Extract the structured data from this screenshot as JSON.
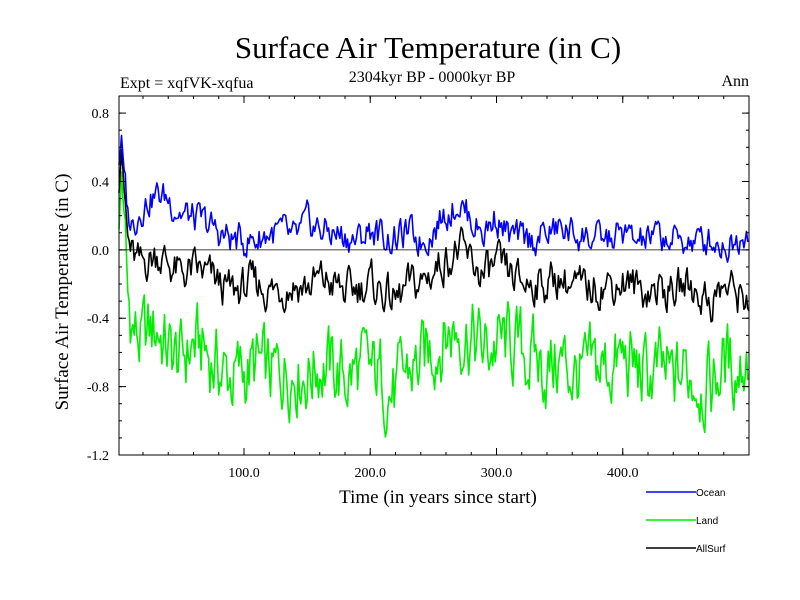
{
  "chart_data": {
    "type": "line",
    "title": "Surface Air Temperature (in C)",
    "subtitle": "2304kyr BP - 0000kyr BP",
    "left_label": "Expt = xqfVK-xqfua",
    "right_label": "Ann",
    "xlabel": "Time (in years since start)",
    "ylabel": "Surface Air Temperature (in C)",
    "xlim": [
      1,
      500
    ],
    "ylim": [
      -1.2,
      0.9
    ],
    "x_ticks": [
      100,
      200,
      300,
      400
    ],
    "x_tick_labels": [
      "100.0",
      "200.0",
      "300.0",
      "400.0"
    ],
    "y_ticks": [
      0.8,
      0.4,
      0.0,
      -0.4,
      -0.8,
      -1.2
    ],
    "y_tick_labels": [
      "0.8",
      "0.4",
      "0.0",
      "-0.4",
      "-0.8",
      "-1.2"
    ],
    "zero_line": 0.0,
    "series": [
      {
        "name": "Ocean",
        "color": "#0000ff",
        "x": [
          1,
          3,
          5,
          8,
          12,
          18,
          25,
          32,
          40,
          50,
          60,
          70,
          80,
          90,
          100,
          110,
          120,
          130,
          140,
          150,
          160,
          170,
          180,
          190,
          200,
          210,
          220,
          230,
          240,
          250,
          260,
          270,
          280,
          290,
          300,
          310,
          320,
          330,
          340,
          350,
          360,
          370,
          380,
          390,
          400,
          410,
          420,
          430,
          440,
          450,
          460,
          470,
          480,
          490,
          500
        ],
        "values": [
          0.5,
          0.66,
          0.45,
          0.2,
          0.15,
          0.25,
          0.3,
          0.32,
          0.3,
          0.22,
          0.18,
          0.15,
          0.1,
          0.06,
          0.05,
          0.06,
          0.1,
          0.1,
          0.05,
          0.15,
          0.12,
          0.1,
          0.08,
          0.05,
          0.12,
          0.08,
          0.06,
          0.1,
          0.05,
          0.12,
          0.22,
          0.28,
          0.18,
          0.1,
          0.2,
          0.08,
          0.05,
          0.06,
          0.1,
          0.12,
          0.1,
          0.08,
          0.05,
          0.06,
          0.1,
          0.04,
          0.06,
          0.08,
          0.05,
          0.06,
          0.04,
          0.06,
          0.03,
          0.05,
          0.15
        ]
      },
      {
        "name": "Land",
        "color": "#00ee00",
        "x": [
          1,
          3,
          5,
          8,
          12,
          18,
          25,
          32,
          40,
          50,
          60,
          70,
          80,
          90,
          100,
          110,
          120,
          130,
          140,
          150,
          160,
          170,
          180,
          190,
          200,
          210,
          220,
          230,
          240,
          250,
          260,
          270,
          280,
          290,
          300,
          310,
          320,
          330,
          340,
          350,
          360,
          370,
          380,
          390,
          400,
          410,
          420,
          430,
          440,
          450,
          460,
          470,
          480,
          490,
          500
        ],
        "values": [
          0.1,
          0.45,
          0.2,
          -0.3,
          -0.45,
          -0.55,
          -0.5,
          -0.45,
          -0.6,
          -0.65,
          -0.55,
          -0.6,
          -0.7,
          -0.75,
          -0.72,
          -0.68,
          -0.75,
          -0.7,
          -0.68,
          -0.72,
          -0.65,
          -0.7,
          -0.75,
          -0.7,
          -0.72,
          -0.75,
          -0.85,
          -0.7,
          -0.68,
          -0.55,
          -0.5,
          -0.45,
          -0.5,
          -0.6,
          -0.55,
          -0.55,
          -0.6,
          -0.65,
          -0.7,
          -0.65,
          -0.72,
          -0.75,
          -0.7,
          -0.68,
          -0.65,
          -0.7,
          -0.75,
          -0.72,
          -0.78,
          -0.7,
          -0.75,
          -0.8,
          -0.65,
          -0.7,
          -0.6
        ]
      },
      {
        "name": "AllSurf",
        "color": "#000000",
        "x": [
          1,
          3,
          5,
          8,
          12,
          18,
          25,
          32,
          40,
          50,
          60,
          70,
          80,
          90,
          100,
          110,
          120,
          130,
          140,
          150,
          160,
          170,
          180,
          190,
          200,
          210,
          220,
          230,
          240,
          250,
          260,
          270,
          280,
          290,
          300,
          310,
          320,
          330,
          340,
          350,
          360,
          370,
          380,
          390,
          400,
          410,
          420,
          430,
          440,
          450,
          460,
          470,
          480,
          490,
          500
        ],
        "values": [
          0.35,
          0.6,
          0.35,
          0.05,
          -0.05,
          -0.1,
          -0.05,
          -0.02,
          -0.08,
          -0.15,
          -0.12,
          -0.15,
          -0.2,
          -0.25,
          -0.22,
          -0.2,
          -0.24,
          -0.22,
          -0.2,
          -0.22,
          -0.18,
          -0.2,
          -0.25,
          -0.22,
          -0.2,
          -0.24,
          -0.3,
          -0.22,
          -0.2,
          -0.12,
          -0.05,
          0.0,
          -0.08,
          -0.15,
          -0.1,
          -0.15,
          -0.2,
          -0.18,
          -0.2,
          -0.15,
          -0.22,
          -0.24,
          -0.2,
          -0.2,
          -0.18,
          -0.22,
          -0.24,
          -0.22,
          -0.25,
          -0.2,
          -0.25,
          -0.3,
          -0.22,
          -0.25,
          -0.28
        ]
      }
    ],
    "legend": {
      "placement": "bottom-right"
    }
  }
}
